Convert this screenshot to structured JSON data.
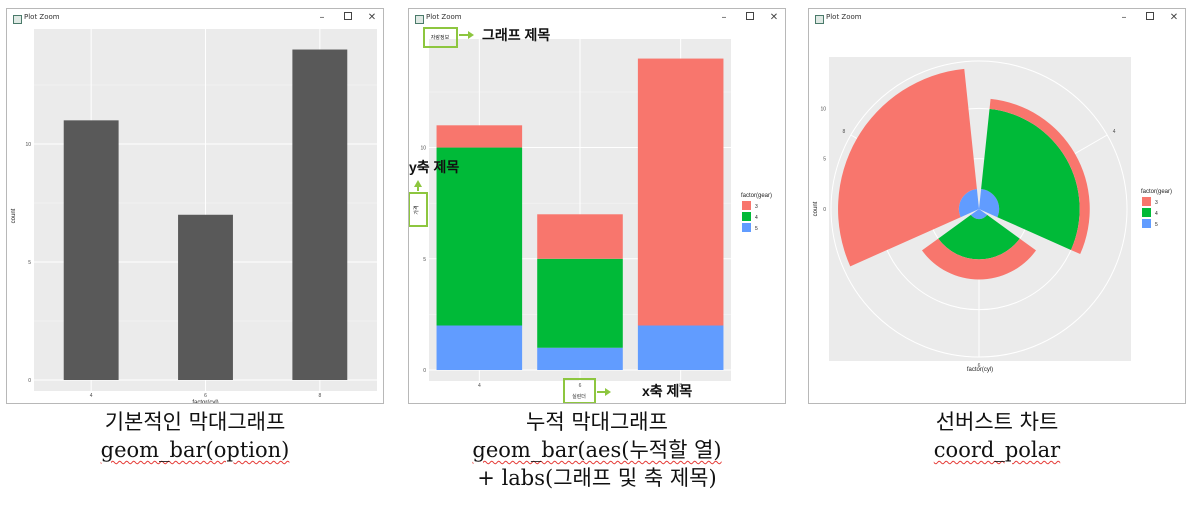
{
  "windows": [
    {
      "title": "Plot Zoom",
      "minimize": "–",
      "close": "✕"
    },
    {
      "title": "Plot Zoom",
      "minimize": "–",
      "close": "✕"
    },
    {
      "title": "Plot Zoom",
      "minimize": "–",
      "close": "✕"
    }
  ],
  "captions": [
    {
      "line1": "기본적인 막대그래프",
      "line2": "geom_bar(option)"
    },
    {
      "line1": "누적 막대그래프",
      "line2": "geom_bar(aes(누적할 열)",
      "line3": "+ labs(그래프 및 축 제목)"
    },
    {
      "line1": "선버스트 차트",
      "line2": "coord_polar"
    }
  ],
  "annotations": {
    "title_box_text": "자랑정보",
    "title_note": "그래프 제목",
    "ylabel_box_text": "가격",
    "ylabel_note": "y축 제목",
    "xlabel_box_text": "실린더",
    "xlabel_note": "x축 제목",
    "accent_color": "#8dc63f"
  },
  "chart_data": [
    {
      "type": "bar",
      "categories": [
        "4",
        "6",
        "8"
      ],
      "values": [
        11,
        7,
        14
      ],
      "xlabel": "factor(cyl)",
      "ylabel": "count",
      "ylim": [
        0,
        14
      ],
      "yticks": [
        "0",
        "5",
        "10"
      ],
      "bar_color": "#595959",
      "grid": true
    },
    {
      "type": "bar",
      "stacked": true,
      "categories": [
        "4",
        "6",
        "8"
      ],
      "series": [
        {
          "name": "3",
          "values": [
            1,
            2,
            12
          ],
          "color": "#f8766d"
        },
        {
          "name": "4",
          "values": [
            8,
            4,
            0
          ],
          "color": "#00ba38"
        },
        {
          "name": "5",
          "values": [
            2,
            1,
            2
          ],
          "color": "#619cff"
        }
      ],
      "title": "자랑정보",
      "xlabel": "실린더",
      "ylabel": "가격",
      "legend_title": "factor(gear)",
      "legend_position": "right",
      "ylim": [
        0,
        14
      ],
      "yticks": [
        "0",
        "5",
        "10"
      ],
      "grid": true
    },
    {
      "type": "pie",
      "polar": true,
      "theta": "x",
      "categories": [
        "4",
        "6",
        "8"
      ],
      "series": [
        {
          "name": "3",
          "values": [
            1,
            2,
            12
          ],
          "color": "#f8766d"
        },
        {
          "name": "4",
          "values": [
            8,
            4,
            0
          ],
          "color": "#00ba38"
        },
        {
          "name": "5",
          "values": [
            2,
            1,
            2
          ],
          "color": "#619cff"
        }
      ],
      "xlabel": "factor(cyl)",
      "ylabel": "count",
      "legend_title": "factor(gear)",
      "legend_position": "right",
      "ylim": [
        0,
        14
      ],
      "yticks": [
        "0",
        "5",
        "10"
      ],
      "grid": true
    }
  ]
}
